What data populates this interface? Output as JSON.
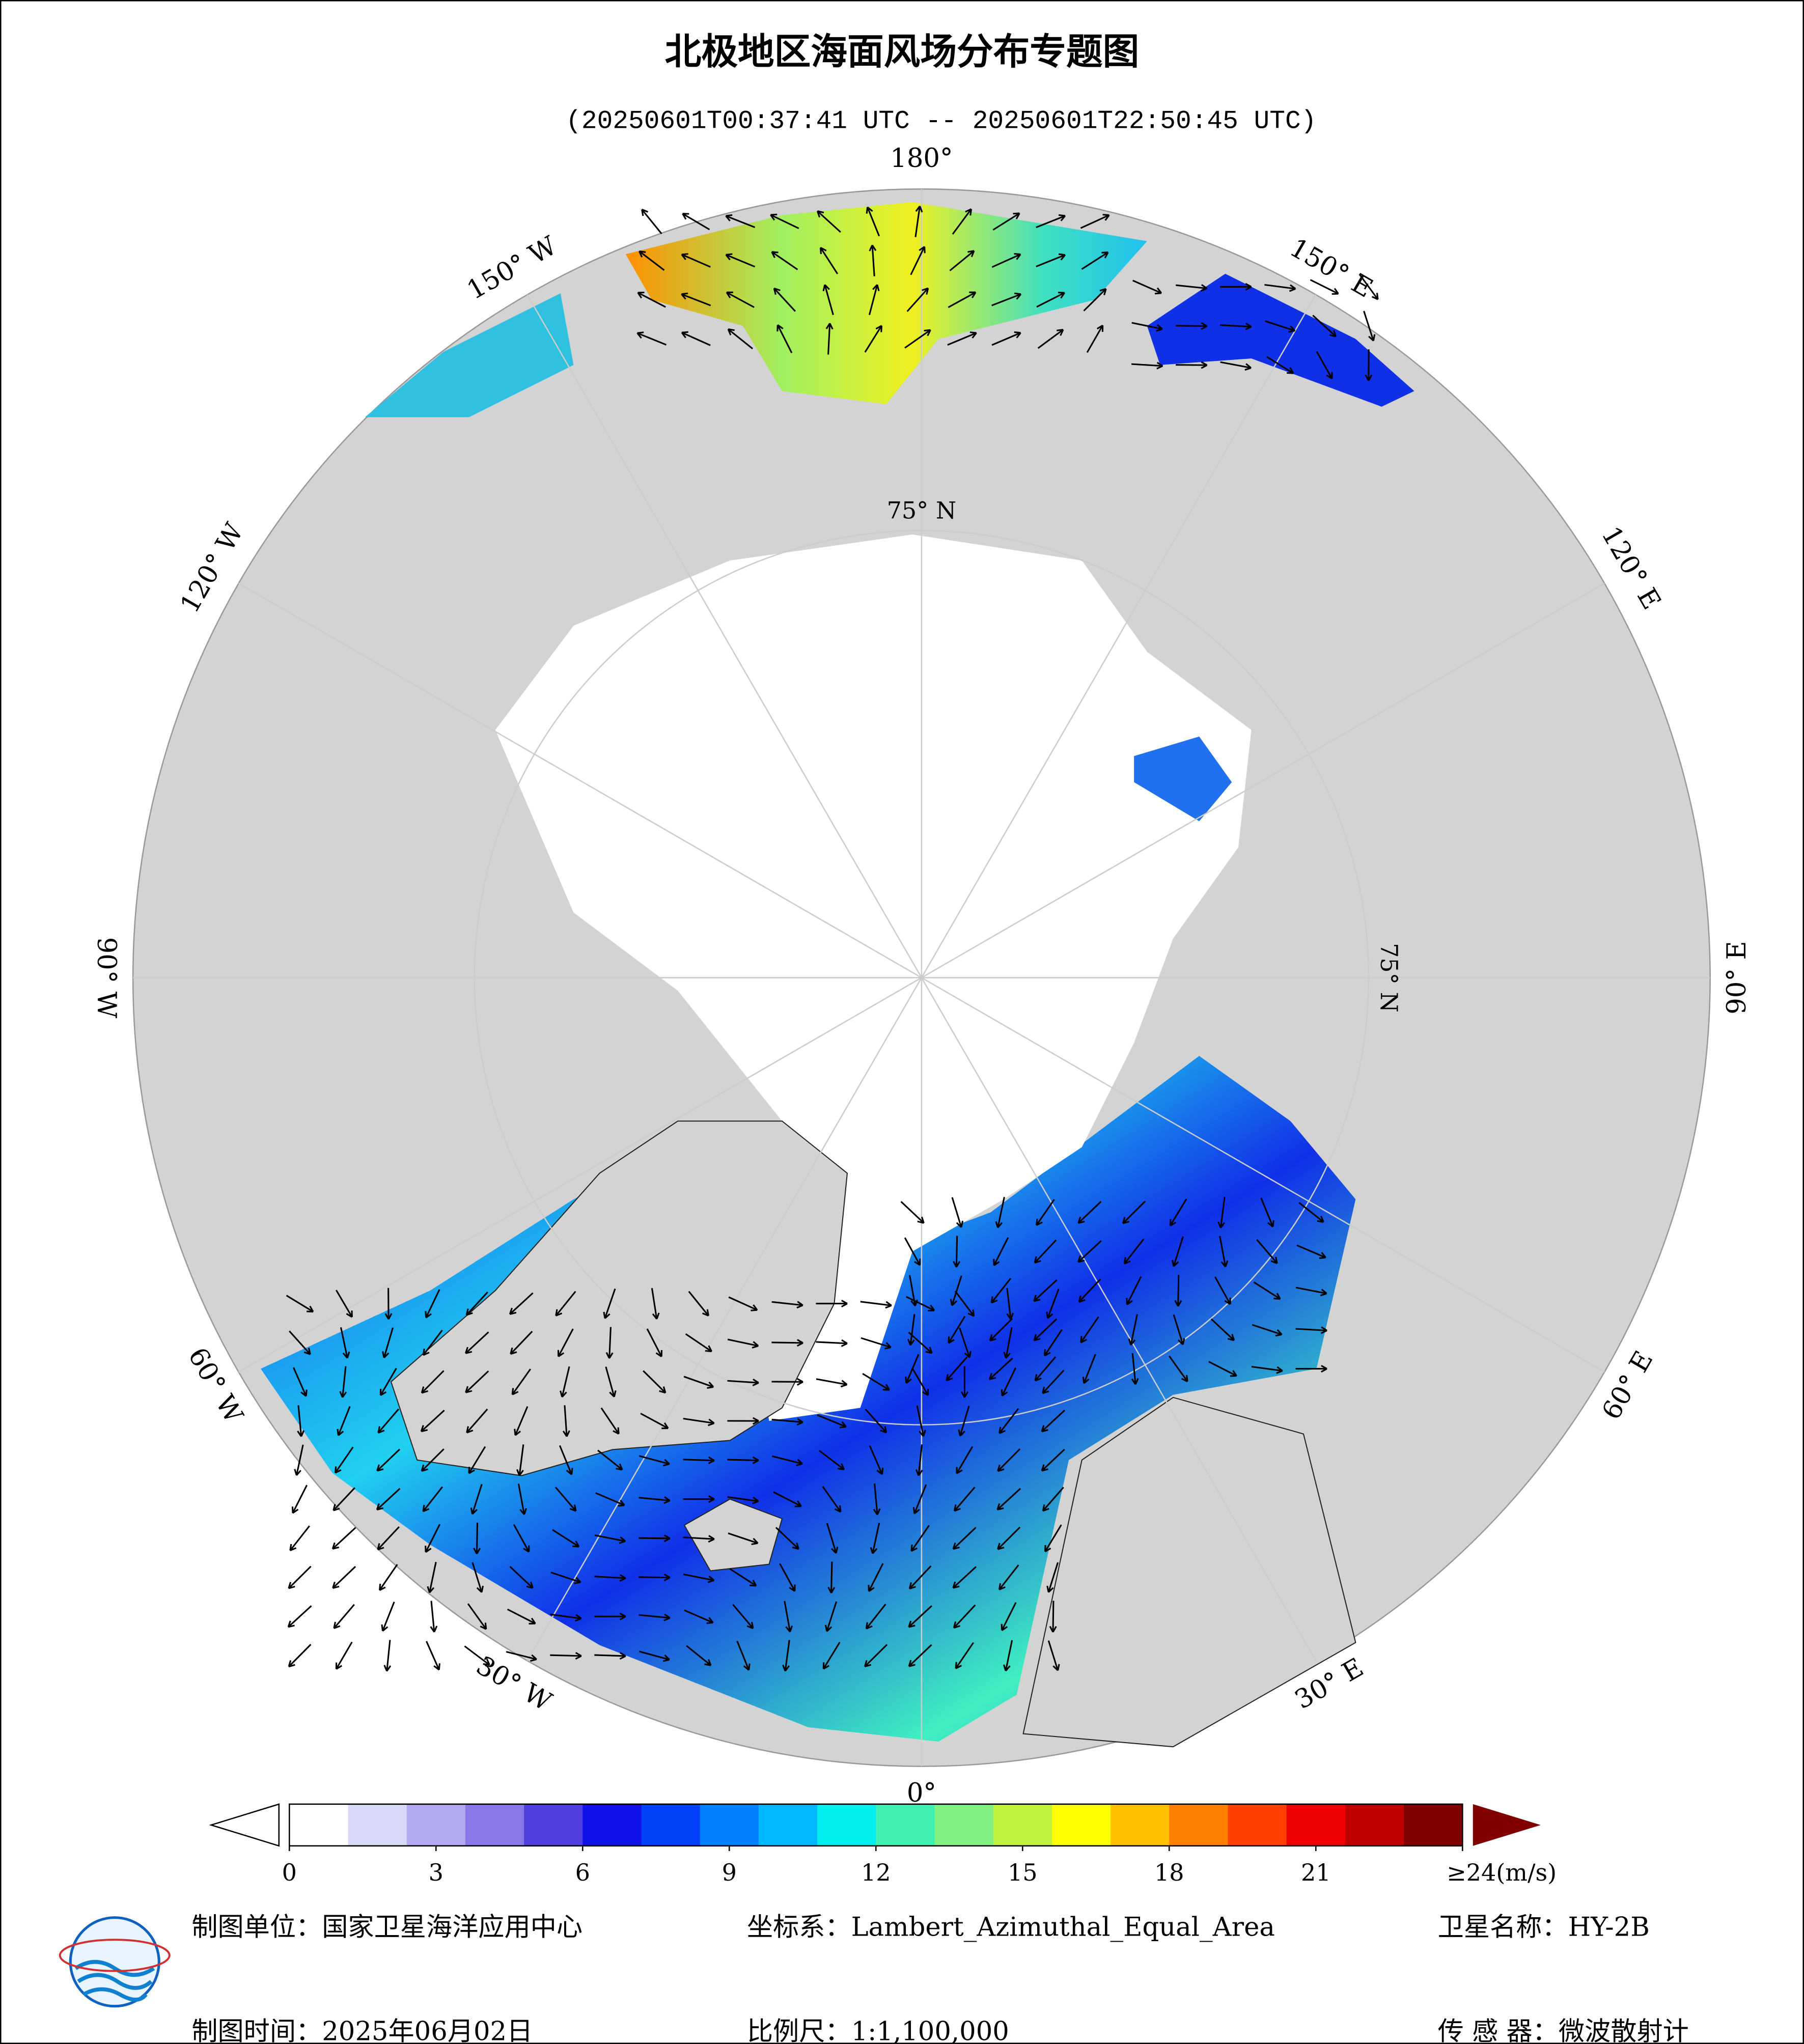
{
  "header": {
    "title": "北极地区海面风场分布专题图",
    "subtitle": "(20250601T00:37:41 UTC -- 20250601T22:50:45 UTC)"
  },
  "map": {
    "longitude_labels": [
      "0°",
      "30° E",
      "60° E",
      "90° E",
      "120° E",
      "150° E",
      "180°",
      "150° W",
      "120° W",
      "90° W",
      "60° W",
      "30° W"
    ],
    "latitude_label": "75° N"
  },
  "colorbar": {
    "colors": [
      "#ffffff",
      "#d8d8f8",
      "#b0a8f0",
      "#8878e8",
      "#5040e0",
      "#1010e8",
      "#0040f8",
      "#0080ff",
      "#00b8ff",
      "#00f0f0",
      "#40f0b0",
      "#80f080",
      "#c0f040",
      "#ffff00",
      "#ffc000",
      "#ff8000",
      "#ff4000",
      "#f00000",
      "#c00000",
      "#800000"
    ],
    "ticks": [
      0,
      3,
      6,
      9,
      12,
      15,
      18,
      21,
      {
        "value": 24,
        "label": "≥24(m/s)"
      }
    ]
  },
  "footer": {
    "unit": "制图单位：国家卫星海洋应用中心",
    "crs": "坐标系：Lambert_Azimuthal_Equal_Area",
    "satellite": "卫星名称：HY-2B",
    "date": "制图时间：2025年06月02日",
    "scale": "比例尺：1:1,100,000",
    "sensor": "传 感 器：微波散射计"
  }
}
